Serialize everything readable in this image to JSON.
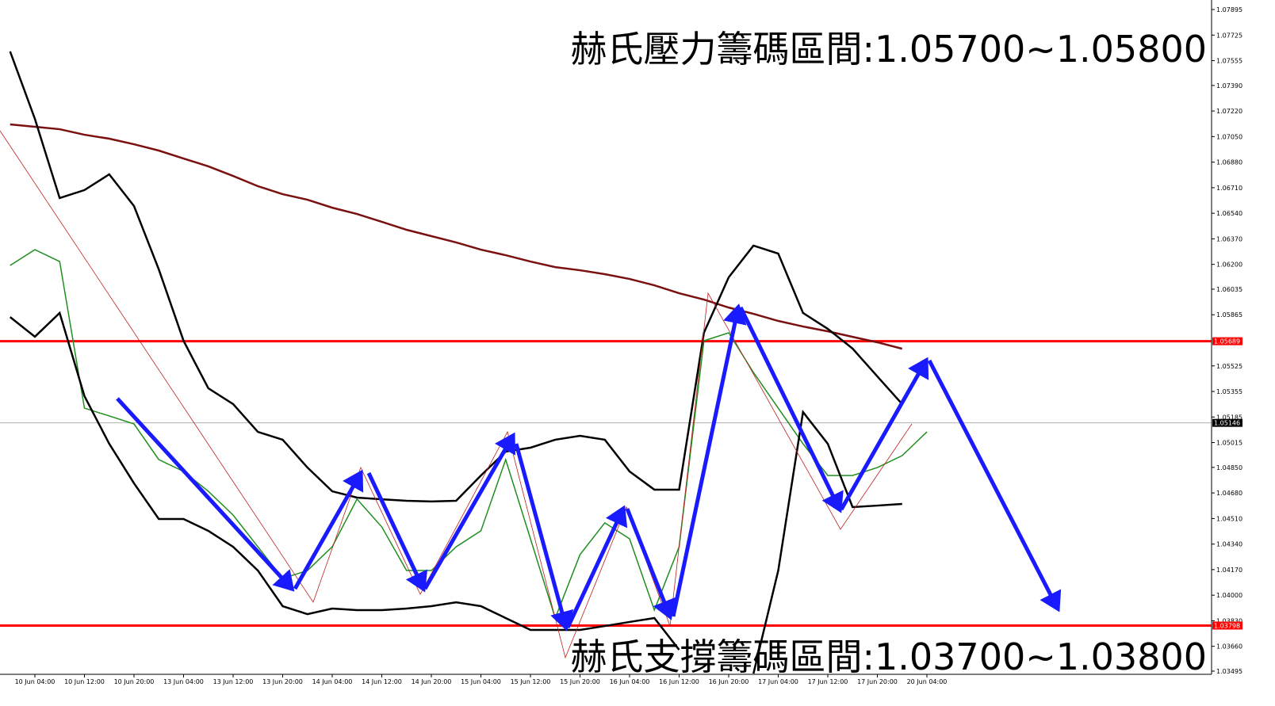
{
  "chart_data": {
    "type": "line",
    "categories": [
      null,
      "10 Jun 04:00",
      null,
      "10 Jun 12:00",
      null,
      "10 Jun 20:00",
      null,
      "13 Jun 04:00",
      null,
      "13 Jun 12:00",
      null,
      "13 Jun 20:00",
      null,
      "14 Jun 04:00",
      null,
      "14 Jun 12:00",
      null,
      "14 Jun 20:00",
      null,
      "15 Jun 04:00",
      null,
      "15 Jun 12:00",
      null,
      "15 Jun 20:00",
      null,
      "16 Jun 04:00",
      null,
      "16 Jun 12:00",
      null,
      "16 Jun 20:00",
      null,
      "17 Jun 04:00",
      null,
      "17 Jun 12:00",
      null,
      "17 Jun 20:00",
      null,
      "20 Jun 04:00",
      null
    ],
    "series": [
      {
        "color": "#1f8f1f",
        "values": [
          1.06193,
          1.06298,
          1.06219,
          1.05244,
          1.05192,
          1.05139,
          1.04902,
          1.04823,
          1.04691,
          1.04533,
          1.04322,
          1.04111,
          1.04164,
          1.04322,
          1.04639,
          1.04454,
          1.04164,
          1.04164,
          1.04322,
          1.04428,
          1.04902,
          1.04375,
          1.03848,
          1.0427,
          1.04481,
          1.04375,
          1.03901,
          1.04322,
          1.05692,
          1.05745,
          1.05481,
          1.05244,
          1.05007,
          1.04796,
          1.04796,
          1.04849,
          1.04928,
          1.05086,
          null
        ]
      },
      {
        "color": "#7a1010",
        "values": [
          1.07131,
          1.07115,
          1.07099,
          1.07062,
          1.07036,
          1.06999,
          1.06957,
          1.06904,
          1.06852,
          1.06788,
          1.0672,
          1.06667,
          1.0663,
          1.06577,
          1.06535,
          1.06483,
          1.0643,
          1.06388,
          1.06346,
          1.06298,
          1.06261,
          1.06219,
          1.06182,
          1.06161,
          1.06135,
          1.06103,
          1.06061,
          1.06008,
          1.05966,
          1.05913,
          1.05871,
          1.05824,
          1.05787,
          1.05755,
          1.05718,
          1.05682,
          1.05639,
          null,
          null
        ]
      },
      {
        "color": "#000000",
        "values": [
          1.07616,
          1.07168,
          1.06641,
          1.06694,
          1.06799,
          1.06588,
          1.06167,
          1.05692,
          1.05376,
          1.05271,
          1.05086,
          1.05034,
          1.04849,
          1.04691,
          1.04649,
          1.04638,
          1.04628,
          1.04623,
          1.04628,
          1.04796,
          1.04955,
          1.04981,
          1.05034,
          1.0506,
          1.05034,
          1.04823,
          1.04702,
          1.04702,
          1.05745,
          1.06114,
          1.06325,
          1.06272,
          1.05877,
          1.05771,
          1.0564,
          1.05455,
          1.05271,
          null,
          null
        ]
      },
      {
        "color": "#000000",
        "values": [
          1.0585,
          1.05719,
          1.05877,
          1.05324,
          1.05007,
          1.04744,
          1.04507,
          1.04507,
          1.04428,
          1.04322,
          1.04164,
          1.03927,
          1.03874,
          1.03911,
          1.03901,
          1.03901,
          1.03911,
          1.03927,
          1.03953,
          1.03927,
          1.03848,
          1.03769,
          1.03769,
          1.03769,
          1.03795,
          1.03822,
          1.03848,
          1.03637,
          null,
          null,
          1.03479,
          1.04164,
          1.05218,
          1.05007,
          1.04586,
          1.04596,
          1.04607,
          null,
          null
        ]
      }
    ],
    "ylim": [
      1.03495,
      1.07895
    ],
    "yticks": [
      1.07895,
      1.07725,
      1.07555,
      {
        "value": 1.0739,
        "label": "1.07390"
      },
      {
        "value": 1.0722,
        "label": "1.07220"
      },
      {
        "value": 1.0705,
        "label": "1.07050"
      },
      {
        "value": 1.0688,
        "label": "1.06880"
      },
      {
        "value": 1.0671,
        "label": "1.06710"
      },
      {
        "value": 1.0654,
        "label": "1.06540"
      },
      {
        "value": 1.0637,
        "label": "1.06370"
      },
      {
        "value": 1.062,
        "label": "1.06200"
      },
      1.06035,
      1.05865,
      1.05525,
      1.05355,
      1.05185,
      1.05015,
      {
        "value": 1.0485,
        "label": "1.04850"
      },
      {
        "value": 1.0468,
        "label": "1.04680"
      },
      {
        "value": 1.0451,
        "label": "1.04510"
      },
      {
        "value": 1.0434,
        "label": "1.04340"
      },
      {
        "value": 1.0417,
        "label": "1.04170"
      },
      {
        "value": 1.04,
        "label": "1.04000"
      },
      {
        "value": 1.0383,
        "label": "1.03830"
      },
      {
        "value": 1.0366,
        "label": "1.03660"
      },
      1.03495
    ],
    "levels": [
      {
        "value": 1.05689,
        "color": "#ff0000"
      },
      {
        "value": 1.05146,
        "color": "#b0b0b0"
      },
      {
        "value": 1.03798,
        "color": "#ff0000"
      }
    ],
    "annotations": [
      "赫氏壓力籌碼區間:1.05700~1.05800",
      "赫氏支撐籌碼區間:1.03700~1.03800"
    ]
  }
}
